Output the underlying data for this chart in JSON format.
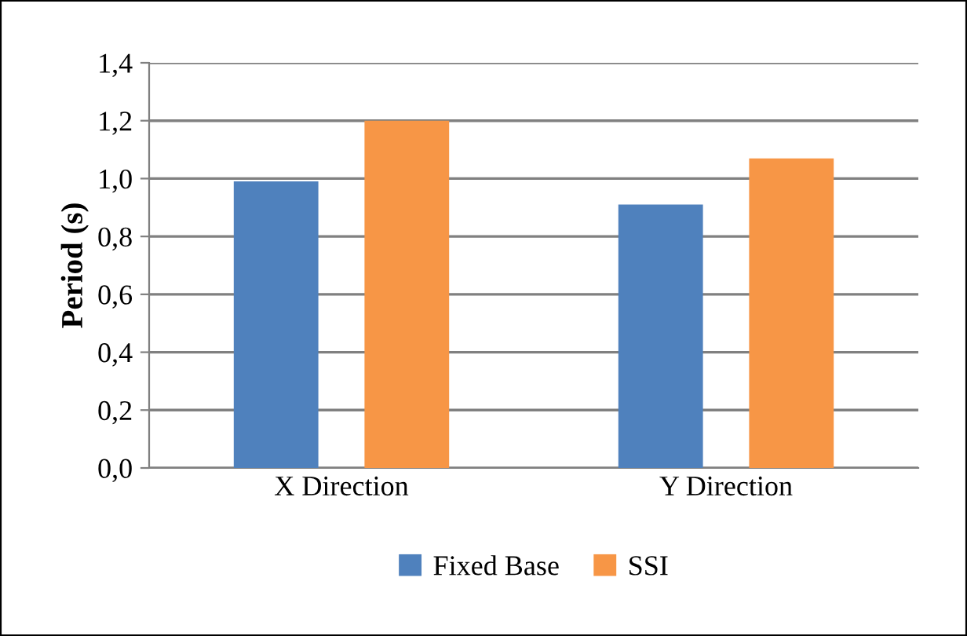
{
  "chart_data": {
    "type": "bar",
    "ylabel": "Period (s)",
    "categories": [
      "X Direction",
      "Y Direction"
    ],
    "series": [
      {
        "name": "Fixed Base",
        "color": "#4f81bd",
        "values": [
          0.99,
          0.91
        ]
      },
      {
        "name": "SSI",
        "color": "#f79646",
        "values": [
          1.2,
          1.07
        ]
      }
    ],
    "ylim": [
      0,
      1.4
    ],
    "yticks": [
      {
        "value": 0,
        "label": "0,0"
      },
      {
        "value": 0.2,
        "label": "0,2"
      },
      {
        "value": 0.4,
        "label": "0,4"
      },
      {
        "value": 0.6,
        "label": "0,6"
      },
      {
        "value": 0.8,
        "label": "0,8"
      },
      {
        "value": 1.0,
        "label": "1,0"
      },
      {
        "value": 1.2,
        "label": "1,2"
      },
      {
        "value": 1.4,
        "label": "1,4"
      }
    ],
    "grid": "y",
    "legend": "bottom"
  }
}
